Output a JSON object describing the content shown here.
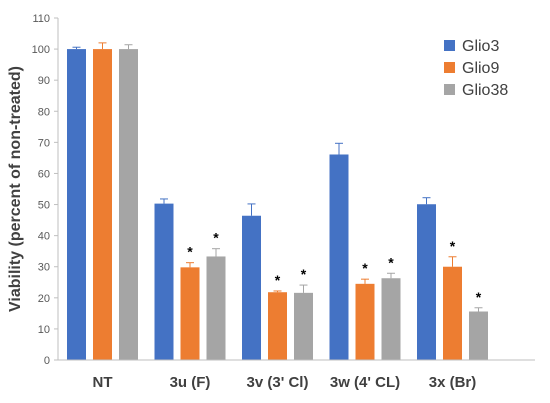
{
  "chart_data": {
    "type": "bar",
    "title": "",
    "xlabel": "",
    "ylabel": "Viability (percent of non-treated)",
    "ylim": [
      0,
      110
    ],
    "yticks": [
      0,
      10,
      20,
      30,
      40,
      50,
      60,
      70,
      80,
      90,
      100,
      110
    ],
    "grid": false,
    "legend_position": "top-right",
    "categories": [
      "NT",
      "3u (F)",
      "3v (3' Cl)",
      "3w (4' CL)",
      "3x (Br)"
    ],
    "series": [
      {
        "name": "Glio3",
        "color": "#4472C4",
        "values": [
          100,
          50.3,
          46.4,
          66.1,
          50.1
        ],
        "errors": [
          0.6,
          1.5,
          3.8,
          3.6,
          2.1
        ],
        "significant": [
          false,
          false,
          false,
          false,
          false
        ]
      },
      {
        "name": "Glio9",
        "color": "#ED7D31",
        "values": [
          100,
          29.8,
          21.8,
          24.5,
          30.0
        ],
        "errors": [
          2.0,
          1.5,
          0.4,
          1.5,
          3.2
        ],
        "significant": [
          false,
          true,
          true,
          true,
          true
        ]
      },
      {
        "name": "Glio38",
        "color": "#A5A5A5",
        "values": [
          100,
          33.3,
          21.6,
          26.3,
          15.6
        ],
        "errors": [
          1.4,
          2.5,
          2.5,
          1.6,
          1.2
        ],
        "significant": [
          false,
          true,
          true,
          true,
          true
        ]
      }
    ],
    "significance_marker": "*"
  }
}
